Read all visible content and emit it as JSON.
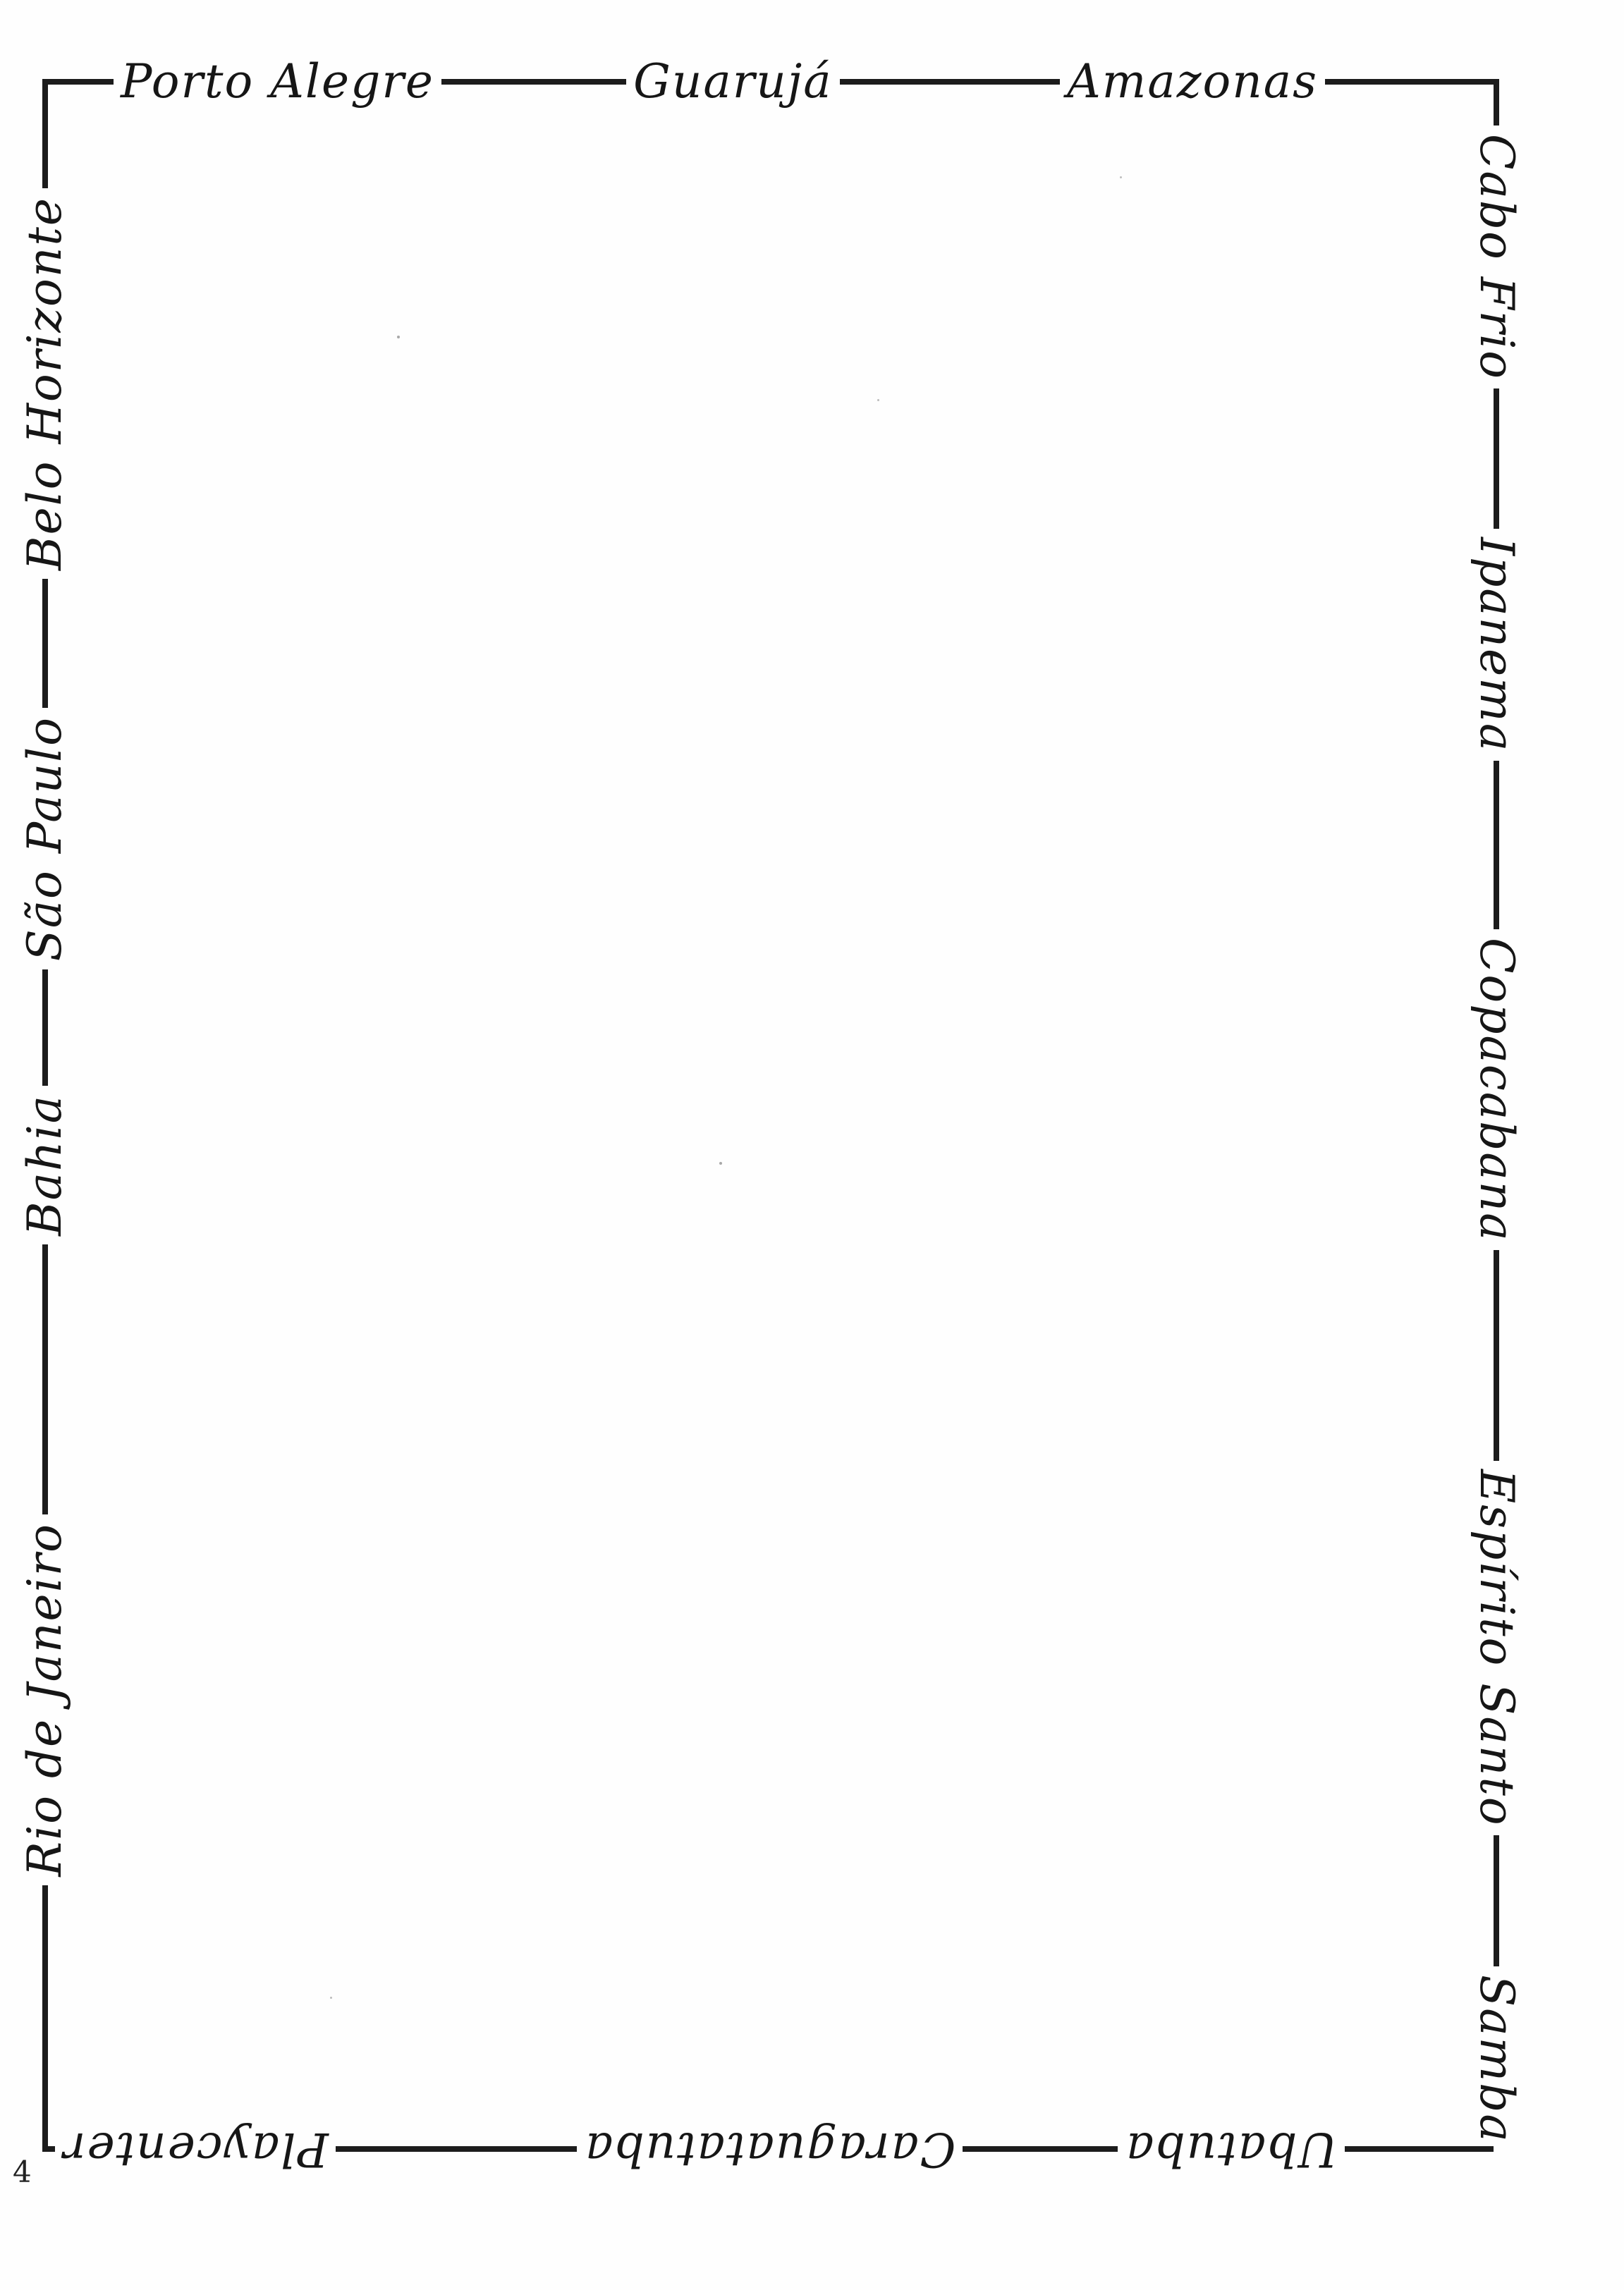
{
  "page": {
    "page_number": "4",
    "ink_color": "#1c1c1c",
    "paper_color": "#fefefe"
  },
  "border": {
    "top": [
      "Porto Alegre",
      "Guarujá",
      "Amazonas"
    ],
    "right": [
      "Cabo Frio",
      "Ipanema",
      "Copacabana",
      "Espírito Santo",
      "Samba"
    ],
    "bottom": [
      "Ubatuba",
      "Caraguatatuba",
      "Playcenter"
    ],
    "left": [
      "Rio de Janeiro",
      "Bahia",
      "São Paulo",
      "Belo Horizonte"
    ]
  }
}
